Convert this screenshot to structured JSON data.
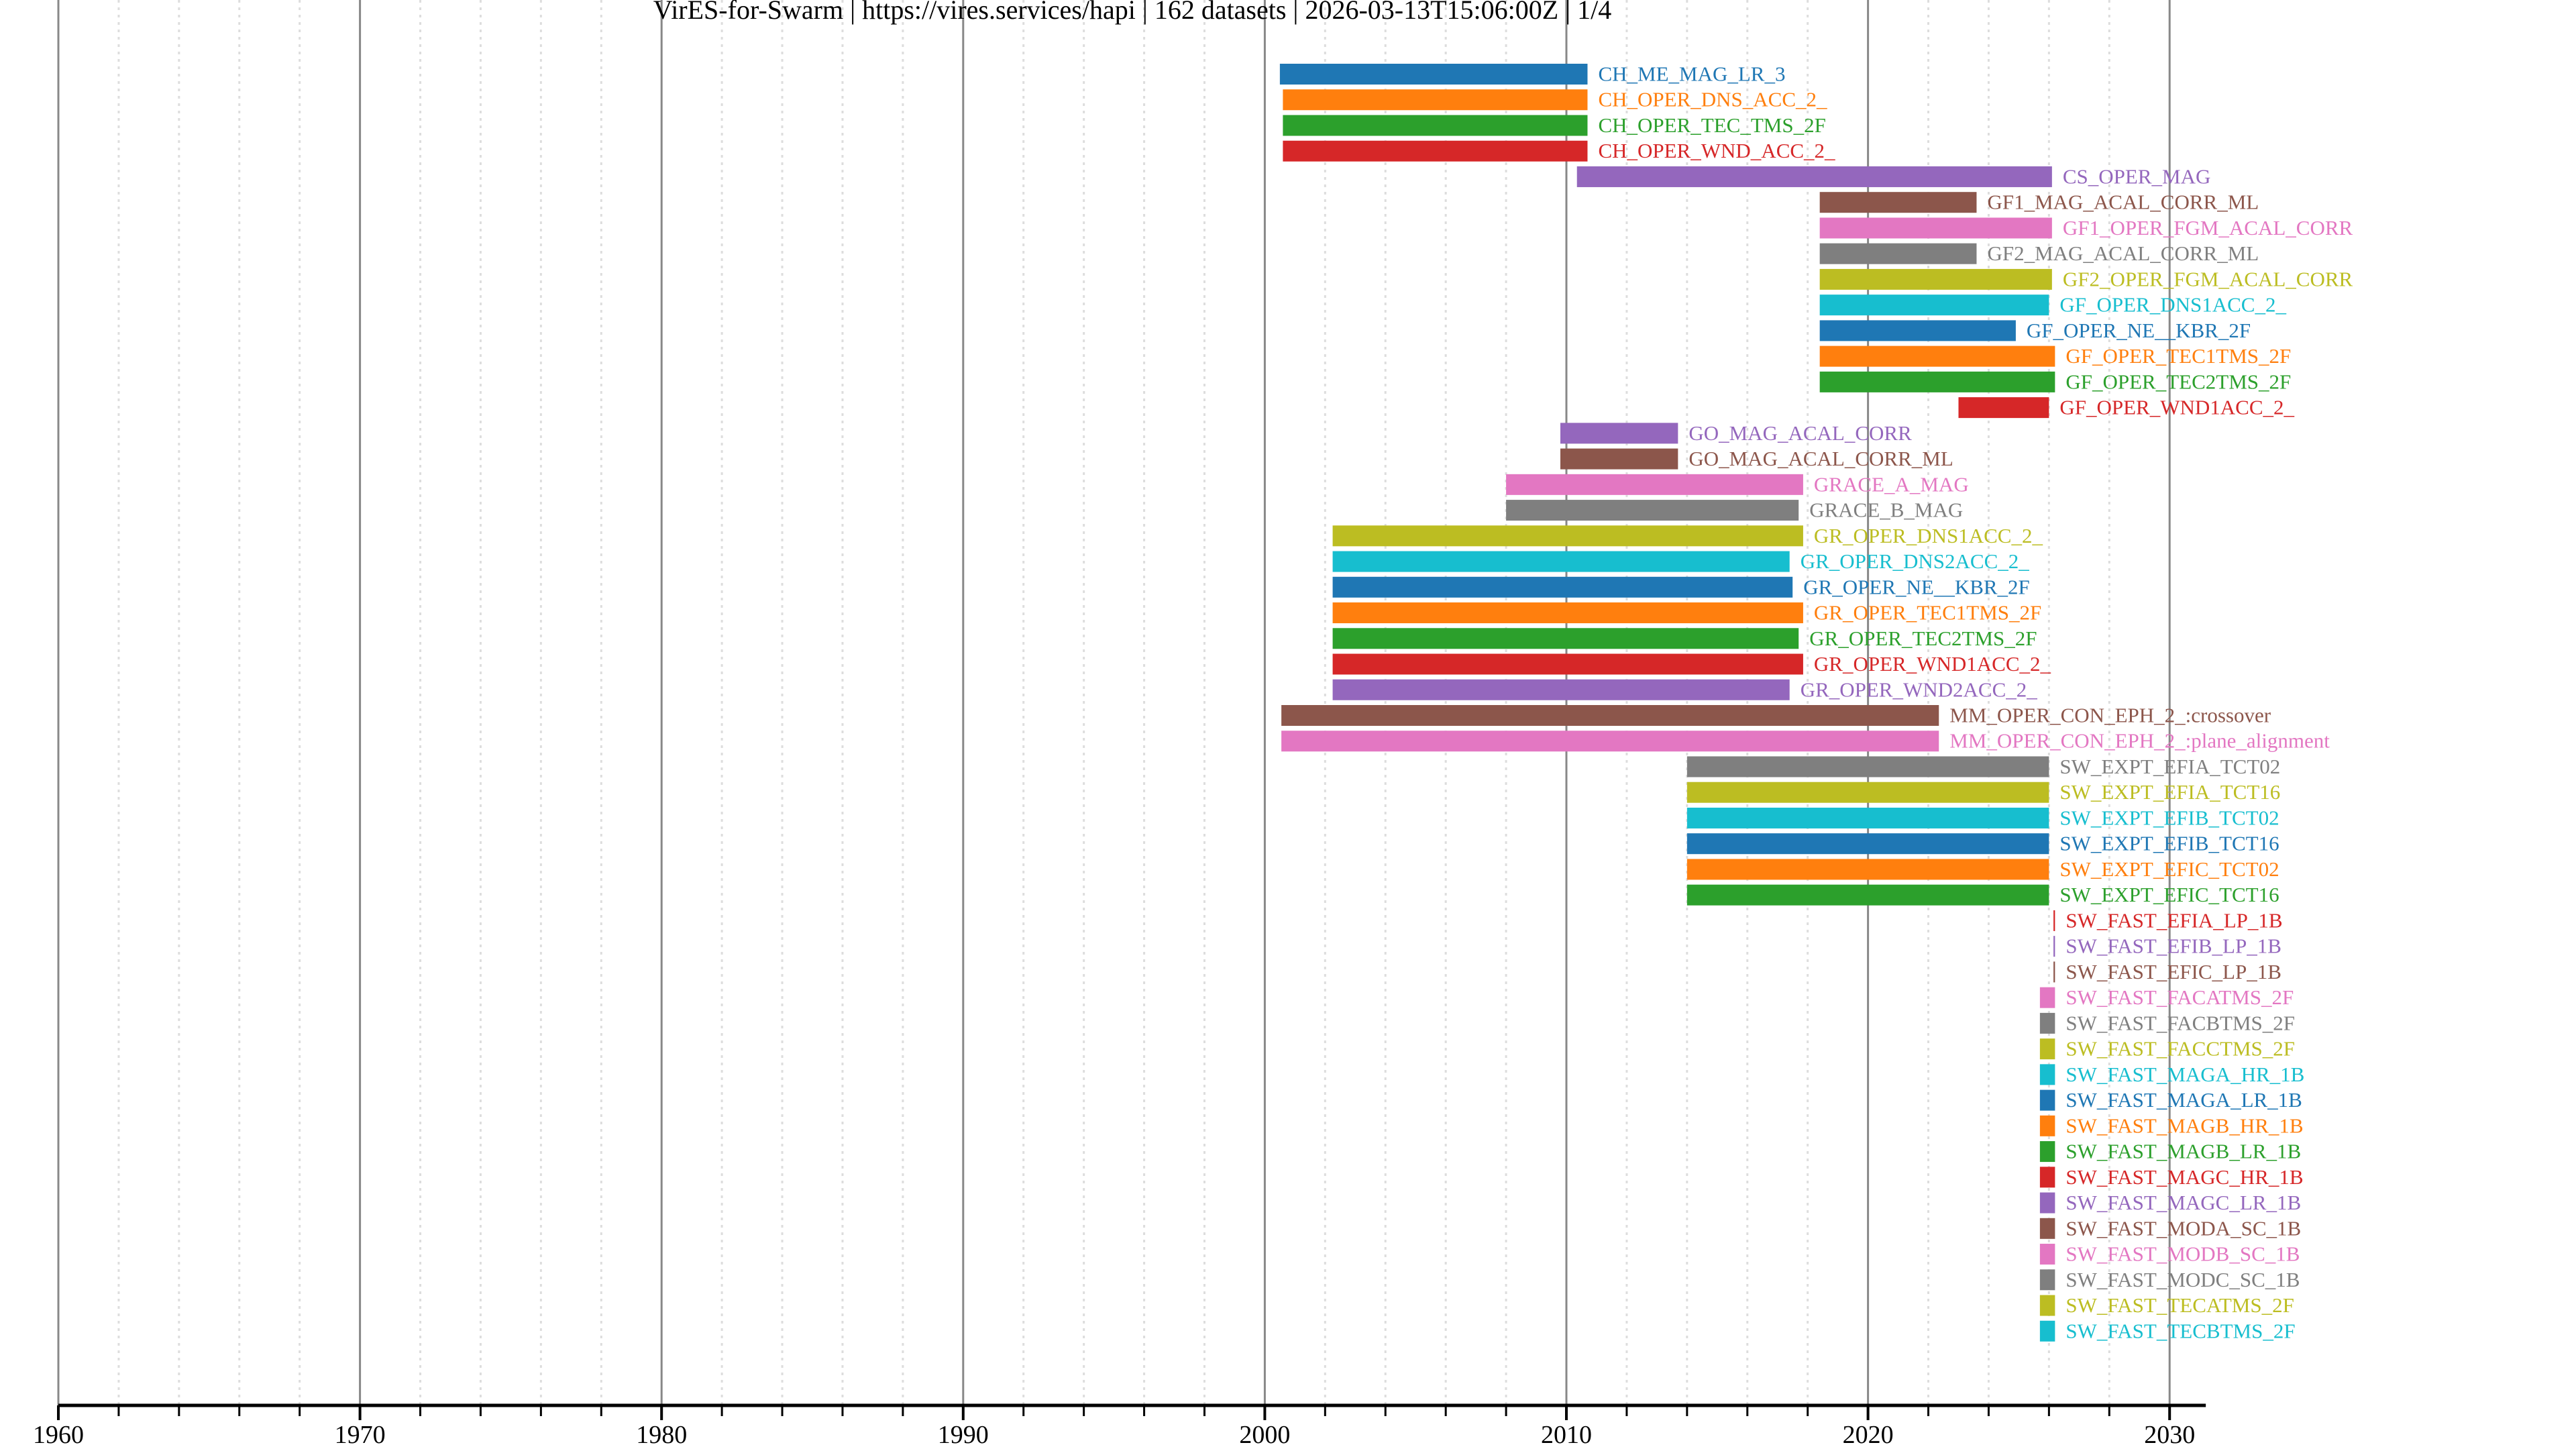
{
  "chart_data": {
    "type": "gantt",
    "title": "VirES-for-Swarm | https://vires.services/hapi | 162 datasets | 2026-03-13T15:06:00Z | 1/4",
    "xlabel": "",
    "ylabel": "",
    "xlim": [
      1960,
      2031.2
    ],
    "x_major_ticks": [
      1960,
      1970,
      1980,
      1990,
      2000,
      2010,
      2020,
      2030
    ],
    "x_tick_labels": [
      "1960",
      "1970",
      "1980",
      "1990",
      "2000",
      "2010",
      "2020",
      "2030"
    ],
    "x_minor_step": 2,
    "grid": true,
    "legend": "none (labels beside bars)",
    "palette": [
      "#1f77b4",
      "#ff7f0e",
      "#2ca02c",
      "#d62728",
      "#9467bd",
      "#8c564b",
      "#e377c2",
      "#7f7f7f",
      "#bcbd22",
      "#17becf"
    ],
    "series": [
      {
        "name": "CH_ME_MAG_LR_3",
        "start": 2000.5,
        "end": 2010.7
      },
      {
        "name": "CH_OPER_DNS_ACC_2_",
        "start": 2000.6,
        "end": 2010.7
      },
      {
        "name": "CH_OPER_TEC_TMS_2F",
        "start": 2000.6,
        "end": 2010.7
      },
      {
        "name": "CH_OPER_WND_ACC_2_",
        "start": 2000.6,
        "end": 2010.7
      },
      {
        "name": "CS_OPER_MAG",
        "start": 2010.35,
        "end": 2026.1
      },
      {
        "name": "GF1_MAG_ACAL_CORR_ML",
        "start": 2018.4,
        "end": 2023.6
      },
      {
        "name": "GF1_OPER_FGM_ACAL_CORR",
        "start": 2018.4,
        "end": 2026.1
      },
      {
        "name": "GF2_MAG_ACAL_CORR_ML",
        "start": 2018.4,
        "end": 2023.6
      },
      {
        "name": "GF2_OPER_FGM_ACAL_CORR",
        "start": 2018.4,
        "end": 2026.1
      },
      {
        "name": "GF_OPER_DNS1ACC_2_",
        "start": 2018.4,
        "end": 2026.0
      },
      {
        "name": "GF_OPER_NE__KBR_2F",
        "start": 2018.4,
        "end": 2024.9
      },
      {
        "name": "GF_OPER_TEC1TMS_2F",
        "start": 2018.4,
        "end": 2026.2
      },
      {
        "name": "GF_OPER_TEC2TMS_2F",
        "start": 2018.4,
        "end": 2026.2
      },
      {
        "name": "GF_OPER_WND1ACC_2_",
        "start": 2023.0,
        "end": 2026.0
      },
      {
        "name": "GO_MAG_ACAL_CORR",
        "start": 2009.8,
        "end": 2013.7
      },
      {
        "name": "GO_MAG_ACAL_CORR_ML",
        "start": 2009.8,
        "end": 2013.7
      },
      {
        "name": "GRACE_A_MAG",
        "start": 2008.0,
        "end": 2017.85
      },
      {
        "name": "GRACE_B_MAG",
        "start": 2008.0,
        "end": 2017.7
      },
      {
        "name": "GR_OPER_DNS1ACC_2_",
        "start": 2002.25,
        "end": 2017.85
      },
      {
        "name": "GR_OPER_DNS2ACC_2_",
        "start": 2002.25,
        "end": 2017.4
      },
      {
        "name": "GR_OPER_NE__KBR_2F",
        "start": 2002.25,
        "end": 2017.5
      },
      {
        "name": "GR_OPER_TEC1TMS_2F",
        "start": 2002.25,
        "end": 2017.85
      },
      {
        "name": "GR_OPER_TEC2TMS_2F",
        "start": 2002.25,
        "end": 2017.7
      },
      {
        "name": "GR_OPER_WND1ACC_2_",
        "start": 2002.25,
        "end": 2017.85
      },
      {
        "name": "GR_OPER_WND2ACC_2_",
        "start": 2002.25,
        "end": 2017.4
      },
      {
        "name": "MM_OPER_CON_EPH_2_:crossover",
        "start": 2000.55,
        "end": 2022.35
      },
      {
        "name": "MM_OPER_CON_EPH_2_:plane_alignment",
        "start": 2000.55,
        "end": 2022.35
      },
      {
        "name": "SW_EXPT_EFIA_TCT02",
        "start": 2014.0,
        "end": 2026.0
      },
      {
        "name": "SW_EXPT_EFIA_TCT16",
        "start": 2014.0,
        "end": 2026.0
      },
      {
        "name": "SW_EXPT_EFIB_TCT02",
        "start": 2014.0,
        "end": 2026.0
      },
      {
        "name": "SW_EXPT_EFIB_TCT16",
        "start": 2014.0,
        "end": 2026.0
      },
      {
        "name": "SW_EXPT_EFIC_TCT02",
        "start": 2014.0,
        "end": 2026.0
      },
      {
        "name": "SW_EXPT_EFIC_TCT16",
        "start": 2014.0,
        "end": 2026.0
      },
      {
        "name": "SW_FAST_EFIA_LP_1B",
        "start": 2026.15,
        "end": 2026.2
      },
      {
        "name": "SW_FAST_EFIB_LP_1B",
        "start": 2026.15,
        "end": 2026.2
      },
      {
        "name": "SW_FAST_EFIC_LP_1B",
        "start": 2026.15,
        "end": 2026.2
      },
      {
        "name": "SW_FAST_FACATMS_2F",
        "start": 2025.7,
        "end": 2026.2
      },
      {
        "name": "SW_FAST_FACBTMS_2F",
        "start": 2025.7,
        "end": 2026.2
      },
      {
        "name": "SW_FAST_FACCTMS_2F",
        "start": 2025.7,
        "end": 2026.2
      },
      {
        "name": "SW_FAST_MAGA_HR_1B",
        "start": 2025.7,
        "end": 2026.2
      },
      {
        "name": "SW_FAST_MAGA_LR_1B",
        "start": 2025.7,
        "end": 2026.2
      },
      {
        "name": "SW_FAST_MAGB_HR_1B",
        "start": 2025.7,
        "end": 2026.2
      },
      {
        "name": "SW_FAST_MAGB_LR_1B",
        "start": 2025.7,
        "end": 2026.2
      },
      {
        "name": "SW_FAST_MAGC_HR_1B",
        "start": 2025.7,
        "end": 2026.2
      },
      {
        "name": "SW_FAST_MAGC_LR_1B",
        "start": 2025.7,
        "end": 2026.2
      },
      {
        "name": "SW_FAST_MODA_SC_1B",
        "start": 2025.7,
        "end": 2026.2
      },
      {
        "name": "SW_FAST_MODB_SC_1B",
        "start": 2025.7,
        "end": 2026.2
      },
      {
        "name": "SW_FAST_MODC_SC_1B",
        "start": 2025.7,
        "end": 2026.2
      },
      {
        "name": "SW_FAST_TECATMS_2F",
        "start": 2025.7,
        "end": 2026.2
      },
      {
        "name": "SW_FAST_TECBTMS_2F",
        "start": 2025.7,
        "end": 2026.2
      }
    ]
  }
}
